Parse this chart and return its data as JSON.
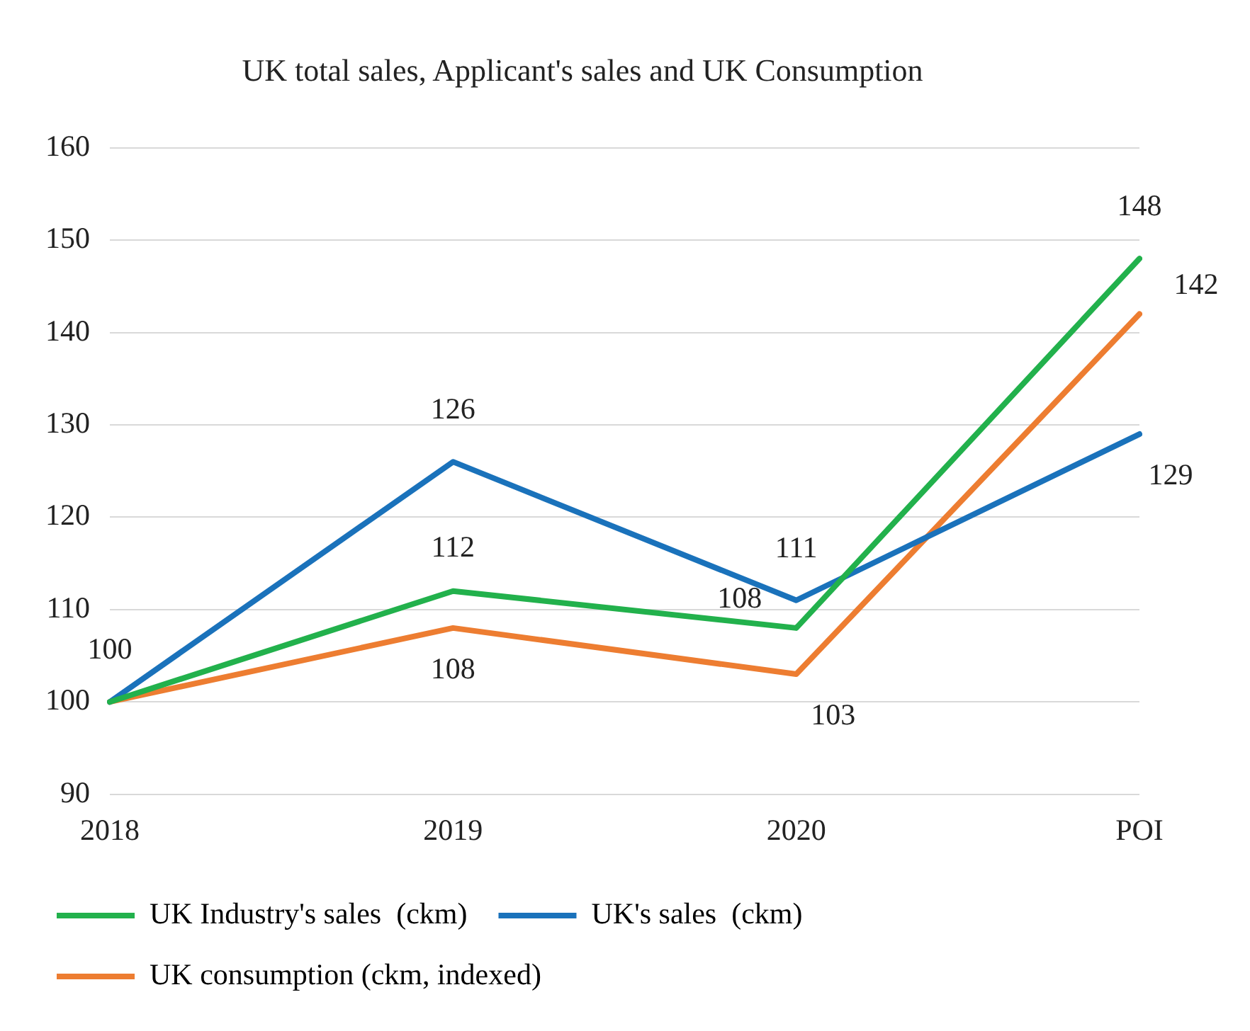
{
  "chart_data": {
    "type": "line",
    "title": "UK total sales, Applicant's sales and UK Consumption",
    "categories": [
      "2018",
      "2019",
      "2020",
      "POI"
    ],
    "series": [
      {
        "name": "UK Industry's sales  (ckm)",
        "color": "#22b14c",
        "values": [
          100,
          112,
          108,
          148
        ],
        "value_labels": [
          null,
          "112",
          "108",
          "148"
        ]
      },
      {
        "name": "UK's sales  (ckm)",
        "color": "#1a72bb",
        "values": [
          100,
          126,
          111,
          129
        ],
        "value_labels": [
          "100",
          "126",
          "111",
          "129"
        ]
      },
      {
        "name": "UK consumption (ckm, indexed)",
        "color": "#ed7d31",
        "values": [
          100,
          108,
          103,
          142
        ],
        "value_labels": [
          null,
          "108",
          "103",
          "142"
        ]
      }
    ],
    "ylim": [
      90,
      160
    ],
    "yticks": [
      90,
      100,
      110,
      120,
      130,
      140,
      150,
      160
    ],
    "grid": "y",
    "legend": "bottom",
    "marker": "none",
    "line_style": "solid"
  }
}
